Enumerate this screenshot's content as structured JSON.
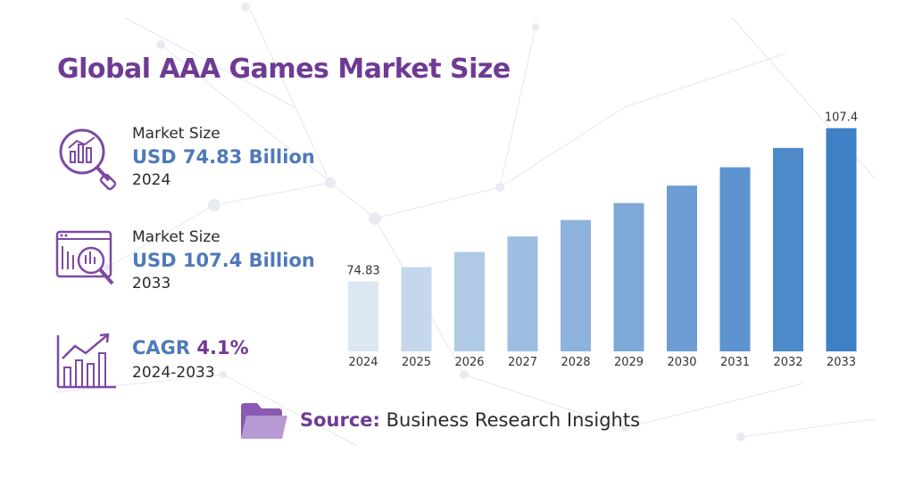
{
  "title": "Global AAA Games Market Size",
  "stats": [
    {
      "label": "Market Size",
      "value": "USD 74.83 Billion",
      "year": "2024",
      "icon": "magnifier-chart-icon"
    },
    {
      "label": "Market Size",
      "value": "USD 107.4 Billion",
      "year": "2033",
      "icon": "analytics-dashboard-icon"
    }
  ],
  "cagr": {
    "label": "CAGR",
    "value": "4.1%",
    "period": "2024-2033",
    "icon": "growth-chart-icon"
  },
  "source": {
    "label": "Source:",
    "name": "Business Research Insights",
    "icon": "folder-icon"
  },
  "colors": {
    "title": "#6f3a94",
    "value": "#4f79b9",
    "bar_light": "#dce7f3",
    "bar_dark": "#3f7fc6"
  },
  "chart_data": {
    "type": "bar",
    "categories": [
      "2024",
      "2025",
      "2026",
      "2027",
      "2028",
      "2029",
      "2030",
      "2031",
      "2032",
      "2033"
    ],
    "values": [
      74.83,
      77.9,
      81.1,
      84.4,
      87.9,
      91.5,
      95.2,
      99.1,
      103.2,
      107.4
    ],
    "data_labels": {
      "0": "74.83",
      "9": "107.4"
    },
    "ylim": [
      60,
      110
    ],
    "grid": false,
    "legend": "none"
  }
}
